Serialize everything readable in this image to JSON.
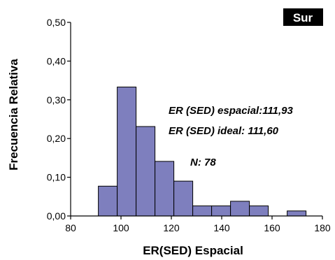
{
  "chart_data": {
    "type": "bar",
    "subtype": "histogram",
    "badge": "Sur",
    "xlabel": "ER(SED) Espacial",
    "ylabel": "Frecuencia Relativa",
    "xlim": [
      80,
      180
    ],
    "ylim": [
      0,
      0.5
    ],
    "x_ticks": [
      80,
      100,
      120,
      140,
      160,
      180
    ],
    "y_ticks": [
      0,
      0.1,
      0.2,
      0.3,
      0.4,
      0.5
    ],
    "x_tick_labels": [
      "80",
      "100",
      "120",
      "140",
      "160",
      "180"
    ],
    "y_tick_labels": [
      "0,00",
      "0,10",
      "0,20",
      "0,30",
      "0,40",
      "0,50"
    ],
    "bar_color": "#7e7fbe",
    "bins": [
      {
        "start": 91,
        "end": 98.5,
        "value": 0.077
      },
      {
        "start": 98.5,
        "end": 106,
        "value": 0.333
      },
      {
        "start": 106,
        "end": 113.5,
        "value": 0.231
      },
      {
        "start": 113.5,
        "end": 121,
        "value": 0.141
      },
      {
        "start": 121,
        "end": 128.5,
        "value": 0.09
      },
      {
        "start": 128.5,
        "end": 136,
        "value": 0.026
      },
      {
        "start": 136,
        "end": 143.5,
        "value": 0.026
      },
      {
        "start": 143.5,
        "end": 151,
        "value": 0.038
      },
      {
        "start": 151,
        "end": 158.5,
        "value": 0.026
      },
      {
        "start": 158.5,
        "end": 166,
        "value": 0
      },
      {
        "start": 166,
        "end": 173.5,
        "value": 0.013
      }
    ],
    "annotations": [
      "ER (SED) espacial:111,93",
      "ER (SED) ideal: 111,60",
      "N: 78"
    ],
    "grid": false
  }
}
